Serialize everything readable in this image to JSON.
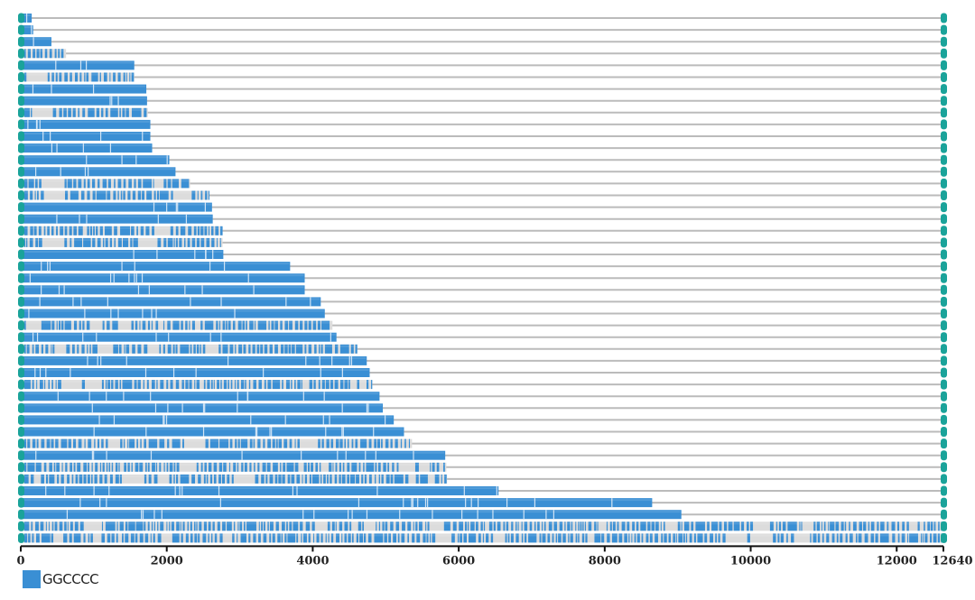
{
  "chart_data": {
    "type": "bar",
    "orientation": "horizontal",
    "xlim": [
      0,
      12640
    ],
    "x_ticks": [
      0,
      2000,
      4000,
      6000,
      8000,
      10000,
      12000,
      12640
    ],
    "grid": false,
    "legend_placement": "bottom-left",
    "legend": [
      {
        "name": "GGCCCC",
        "color": "#3a8fd4"
      }
    ],
    "colors": {
      "motif": "#3a8fd4",
      "sequence_line": "#bbbbbb",
      "end_cap": "#1aa39a",
      "gap": "#dcdcdc"
    },
    "sequence_length": 12640,
    "motif_extent": [
      150,
      170,
      420,
      620,
      1555,
      1555,
      1720,
      1730,
      1740,
      1775,
      1775,
      1800,
      2035,
      2120,
      2320,
      2585,
      2620,
      2630,
      2765,
      2765,
      2775,
      3690,
      3890,
      3890,
      4110,
      4165,
      4270,
      4325,
      4610,
      4740,
      4780,
      4815,
      4915,
      4960,
      5110,
      5250,
      5360,
      5815,
      5830,
      5840,
      6545,
      8650,
      9050,
      12640,
      12640
    ],
    "sparse_rows": [
      4,
      6,
      9,
      15,
      16,
      19,
      20,
      27,
      29,
      32,
      37,
      39,
      40,
      44,
      45
    ]
  }
}
